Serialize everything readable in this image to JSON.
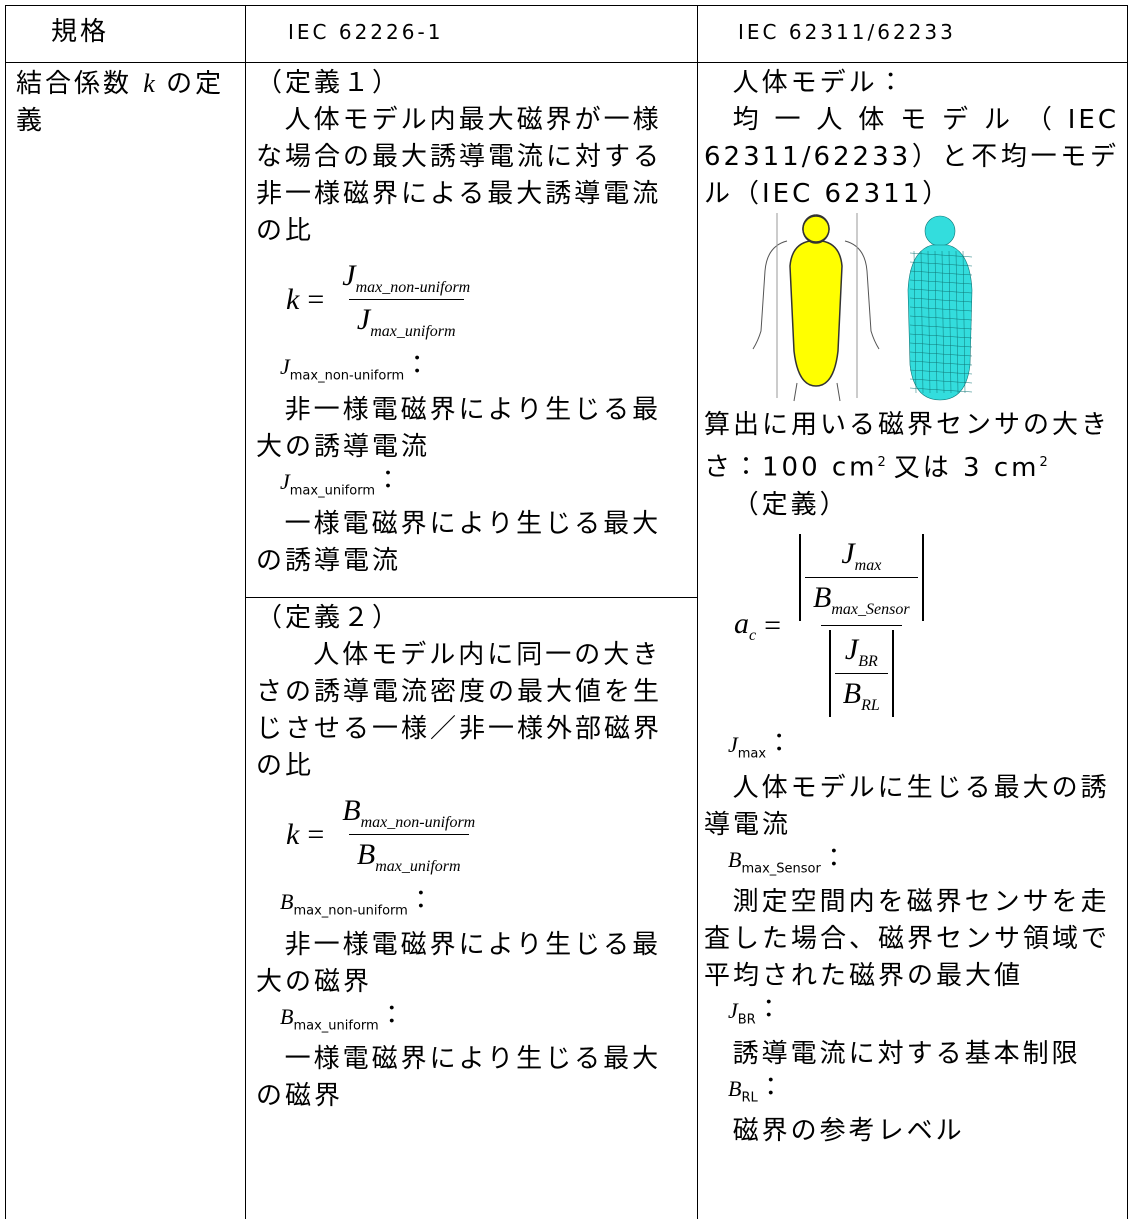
{
  "table": {
    "header": [
      "規格",
      "IEC 62226-1",
      "IEC 62311/62233"
    ],
    "label": {
      "before": "結合係数 ",
      "symbol": "k",
      "after": " の定義"
    },
    "iec62226": [
      {
        "title": "（定義１）",
        "text": "人体モデル内最大磁界が一様な場合の最大誘導電流に対する非一様磁界による最大誘導電流の比",
        "formula": {
          "lhs": "k",
          "eq": "=",
          "num": {
            "symbol": "J",
            "sub": "max_non-uniform"
          },
          "den": {
            "symbol": "J",
            "sub": "max_uniform"
          }
        },
        "terms": [
          {
            "symbol": "J",
            "sub": "max_non-uniform",
            "colon": "：",
            "text": "非一様電磁界により生じる最大の誘導電流"
          },
          {
            "symbol": "J",
            "sub": "max_uniform",
            "colon": "：",
            "text": "一様電磁界により生じる最大の誘導電流"
          }
        ]
      },
      {
        "title": "（定義２）",
        "text": "人体モデル内に同一の大きさの誘導電流密度の最大値を生じさせる一様／非一様外部磁界の比",
        "formula": {
          "lhs": "k",
          "eq": "=",
          "num": {
            "symbol": "B",
            "sub": "max_non-uniform"
          },
          "den": {
            "symbol": "B",
            "sub": "max_uniform"
          }
        },
        "terms": [
          {
            "symbol": "B",
            "sub": "max_non-uniform",
            "colon": "：",
            "text": "非一様電磁界により生じる最大の磁界"
          },
          {
            "symbol": "B",
            "sub": "max_uniform",
            "colon": "：",
            "text": "一様電磁界により生じる最大の磁界"
          }
        ]
      }
    ],
    "iec62311": {
      "model_title": "人体モデル：",
      "model_text": "均一人体モデル（IEC 62311/62233）と不均一モデル（IEC 62311）",
      "sensor_text": "算出に用いる磁界センサの大きさ：100 cm",
      "sensor_exp1": "2",
      "sensor_mid": "又は 3 cm",
      "sensor_exp2": "2",
      "def_title": "（定義）",
      "formula": {
        "lhs": "a",
        "lhs_sub": "c",
        "eq": "=",
        "num_num": {
          "symbol": "J",
          "sub": "max"
        },
        "num_den": {
          "symbol": "B",
          "sub": "max_Sensor"
        },
        "den_num": {
          "symbol": "J",
          "sub": "BR"
        },
        "den_den": {
          "symbol": "B",
          "sub": "RL"
        }
      },
      "terms": [
        {
          "symbol": "J",
          "sub": "max",
          "colon": "：",
          "text": "人体モデルに生じる最大の誘導電流"
        },
        {
          "symbol": "B",
          "sub": "max_Sensor",
          "colon": "：",
          "text": "測定空間内を磁界センサを走査した場合、磁界センサ領域で平均された磁界の最大値"
        },
        {
          "symbol": "J",
          "sub": "BR",
          "colon": "：",
          "text": "誘導電流に対する基本制限"
        },
        {
          "symbol": "B",
          "sub": "RL",
          "colon": "：",
          "text": "磁界の参考レベル"
        }
      ]
    }
  }
}
